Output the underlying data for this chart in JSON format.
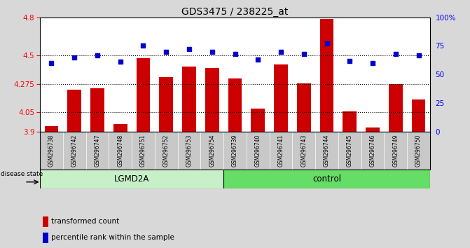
{
  "title": "GDS3475 / 238225_at",
  "samples": [
    "GSM296738",
    "GSM296742",
    "GSM296747",
    "GSM296748",
    "GSM296751",
    "GSM296752",
    "GSM296753",
    "GSM296754",
    "GSM296739",
    "GSM296740",
    "GSM296741",
    "GSM296743",
    "GSM296744",
    "GSM296745",
    "GSM296746",
    "GSM296749",
    "GSM296750"
  ],
  "bar_values": [
    3.94,
    4.23,
    4.24,
    3.96,
    4.48,
    4.33,
    4.41,
    4.4,
    4.32,
    4.08,
    4.43,
    4.28,
    4.79,
    4.06,
    3.93,
    4.275,
    4.15
  ],
  "dot_values": [
    60,
    65,
    67,
    61,
    75,
    70,
    72,
    70,
    68,
    63,
    70,
    68,
    77,
    62,
    60,
    68,
    67
  ],
  "bar_color": "#cc0000",
  "dot_color": "#0000cc",
  "ylim_left": [
    3.9,
    4.8
  ],
  "ylim_right": [
    0,
    100
  ],
  "yticks_left": [
    3.9,
    4.05,
    4.275,
    4.5,
    4.8
  ],
  "yticks_left_labels": [
    "3.9",
    "4.05",
    "4.275",
    "4.5",
    "4.8"
  ],
  "yticks_right": [
    0,
    25,
    50,
    75,
    100
  ],
  "yticks_right_labels": [
    "0",
    "25",
    "50",
    "75",
    "100%"
  ],
  "hlines": [
    4.05,
    4.275,
    4.5
  ],
  "group1_label": "LGMD2A",
  "group2_label": "control",
  "group1_count": 8,
  "group2_count": 9,
  "disease_state_label": "disease state",
  "legend_bar": "transformed count",
  "legend_dot": "percentile rank within the sample",
  "fig_bg": "#d8d8d8",
  "group1_color": "#c8f0c8",
  "group2_color": "#66dd66",
  "xtick_bg": "#c8c8c8",
  "axis_bg": "#ffffff"
}
